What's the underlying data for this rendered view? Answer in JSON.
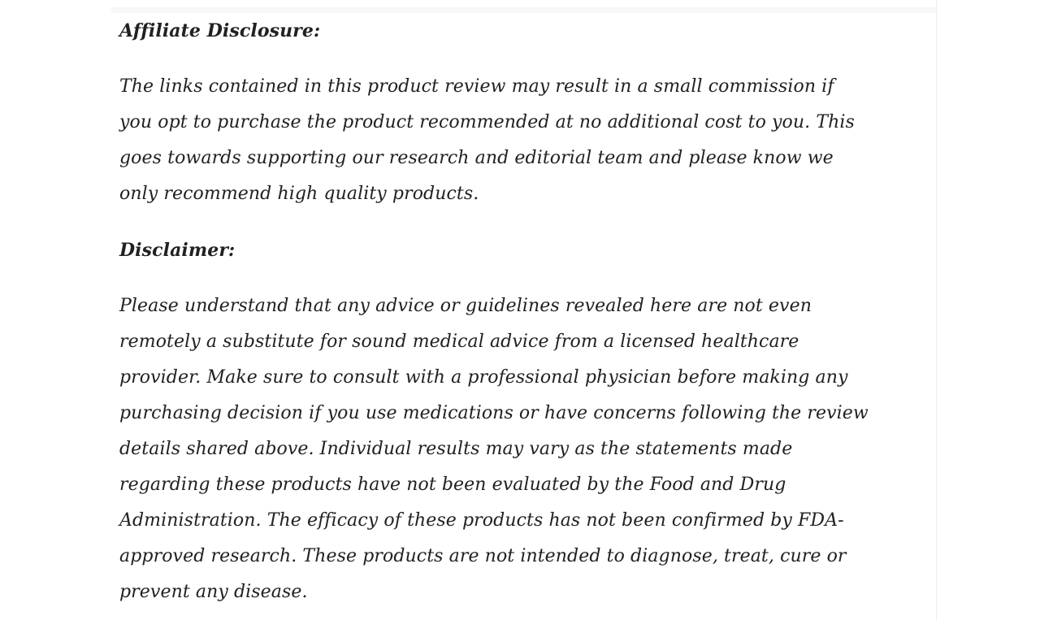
{
  "page": {
    "background_color": "#ffffff",
    "divider_color": "#ececec",
    "top_strip_color": "#f7f7f7",
    "text_color": "#212121"
  },
  "article": {
    "sections": [
      {
        "heading": "Affiliate Disclosure:",
        "body": "The links contained in this product review may result in a small commission if\nyou opt to purchase the product recommended at no additional cost to you. This\ngoes towards supporting our research and editorial team and please know we\nonly recommend high quality products."
      },
      {
        "heading": "Disclaimer:",
        "body": "Please understand that any advice or guidelines revealed here are not even\nremotely a substitute for sound medical advice from a licensed healthcare\nprovider. Make sure to consult with a professional physician before making any\npurchasing decision if you use medications or have concerns following the review\ndetails shared above. Individual results may vary as the statements made\nregarding these products have not been evaluated by the Food and Drug\nAdministration. The efficacy of these products has not been confirmed by FDA-\napproved research. These products are not intended to diagnose, treat, cure or\nprevent any disease."
      }
    ]
  }
}
